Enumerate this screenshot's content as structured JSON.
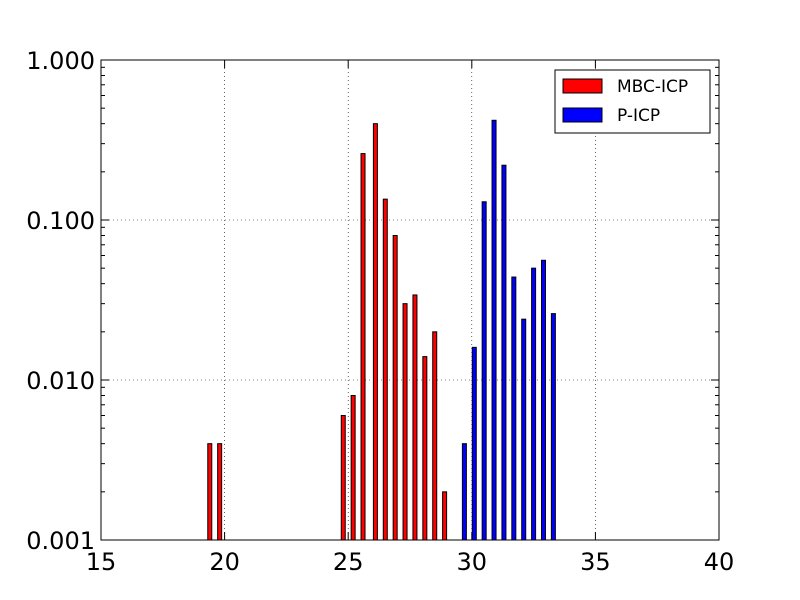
{
  "chart_data": {
    "type": "bar",
    "title": "",
    "xlabel": "",
    "ylabel": "",
    "xlim": [
      15,
      40
    ],
    "ylim": [
      0.001,
      1.0
    ],
    "yscale": "log",
    "grid": true,
    "legend_position": "top-right",
    "x_ticks": [
      "15",
      "20",
      "25",
      "30",
      "35",
      "40"
    ],
    "y_ticks": [
      "0.001",
      "0.010",
      "0.100",
      "1.000"
    ],
    "series": [
      {
        "name": "MBC-ICP",
        "color": "#ff0000",
        "points": [
          {
            "x": 19.4,
            "y": 0.004
          },
          {
            "x": 19.8,
            "y": 0.004
          },
          {
            "x": 24.8,
            "y": 0.006
          },
          {
            "x": 25.2,
            "y": 0.008
          },
          {
            "x": 25.6,
            "y": 0.26
          },
          {
            "x": 26.1,
            "y": 0.4
          },
          {
            "x": 26.5,
            "y": 0.135
          },
          {
            "x": 26.9,
            "y": 0.08
          },
          {
            "x": 27.3,
            "y": 0.03
          },
          {
            "x": 27.7,
            "y": 0.034
          },
          {
            "x": 28.1,
            "y": 0.014
          },
          {
            "x": 28.5,
            "y": 0.02
          },
          {
            "x": 28.9,
            "y": 0.002
          }
        ]
      },
      {
        "name": "P-ICP",
        "color": "#0000ff",
        "points": [
          {
            "x": 29.7,
            "y": 0.004
          },
          {
            "x": 30.1,
            "y": 0.016
          },
          {
            "x": 30.5,
            "y": 0.13
          },
          {
            "x": 30.9,
            "y": 0.42
          },
          {
            "x": 31.3,
            "y": 0.22
          },
          {
            "x": 31.7,
            "y": 0.044
          },
          {
            "x": 32.1,
            "y": 0.024
          },
          {
            "x": 32.5,
            "y": 0.05
          },
          {
            "x": 32.9,
            "y": 0.056
          },
          {
            "x": 33.3,
            "y": 0.026
          }
        ]
      }
    ]
  }
}
